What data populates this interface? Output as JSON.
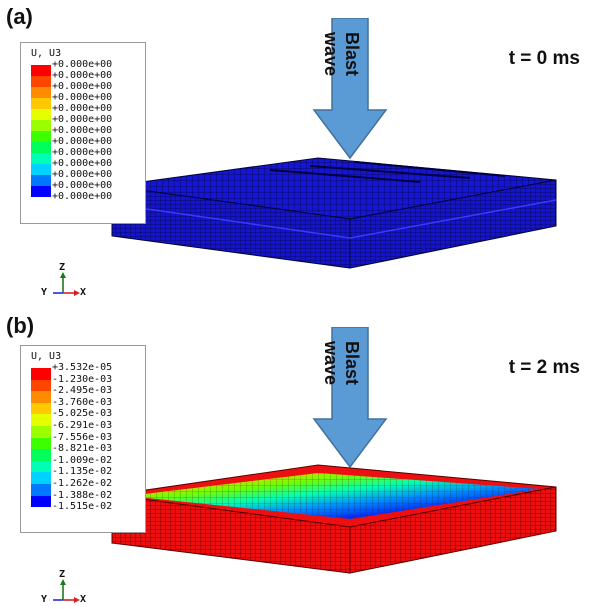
{
  "panels": [
    {
      "label": "(a)",
      "time": "t = 0 ms",
      "arrow_text": "Blast wave",
      "legend": {
        "title": "U, U3",
        "values": [
          "+0.000e+00",
          "+0.000e+00",
          "+0.000e+00",
          "+0.000e+00",
          "+0.000e+00",
          "+0.000e+00",
          "+0.000e+00",
          "+0.000e+00",
          "+0.000e+00",
          "+0.000e+00",
          "+0.000e+00",
          "+0.000e+00",
          "+0.000e+00"
        ]
      },
      "axes": {
        "z": "Z",
        "y": "Y",
        "x": "X"
      }
    },
    {
      "label": "(b)",
      "time": "t = 2 ms",
      "arrow_text": "Blast wave",
      "legend": {
        "title": "U, U3",
        "values": [
          "+3.532e-05",
          "-1.230e-03",
          "-2.495e-03",
          "-3.760e-03",
          "-5.025e-03",
          "-6.291e-03",
          "-7.556e-03",
          "-8.821e-03",
          "-1.009e-02",
          "-1.135e-02",
          "-1.262e-02",
          "-1.388e-02",
          "-1.515e-02"
        ]
      },
      "axes": {
        "z": "Z",
        "y": "Y",
        "x": "X"
      }
    }
  ],
  "colors": {
    "contour": [
      "#ff0000",
      "#ff4600",
      "#ff8c00",
      "#ffc800",
      "#e6ff00",
      "#9bff00",
      "#3cff00",
      "#00ff5a",
      "#00ffb4",
      "#00d2ff",
      "#0078ff",
      "#0000ff"
    ],
    "arrow_fill": "#5b9bd5",
    "arrow_stroke": "#41719c",
    "plate_blue": "#1010d8",
    "plate_red": "#ee1010"
  }
}
